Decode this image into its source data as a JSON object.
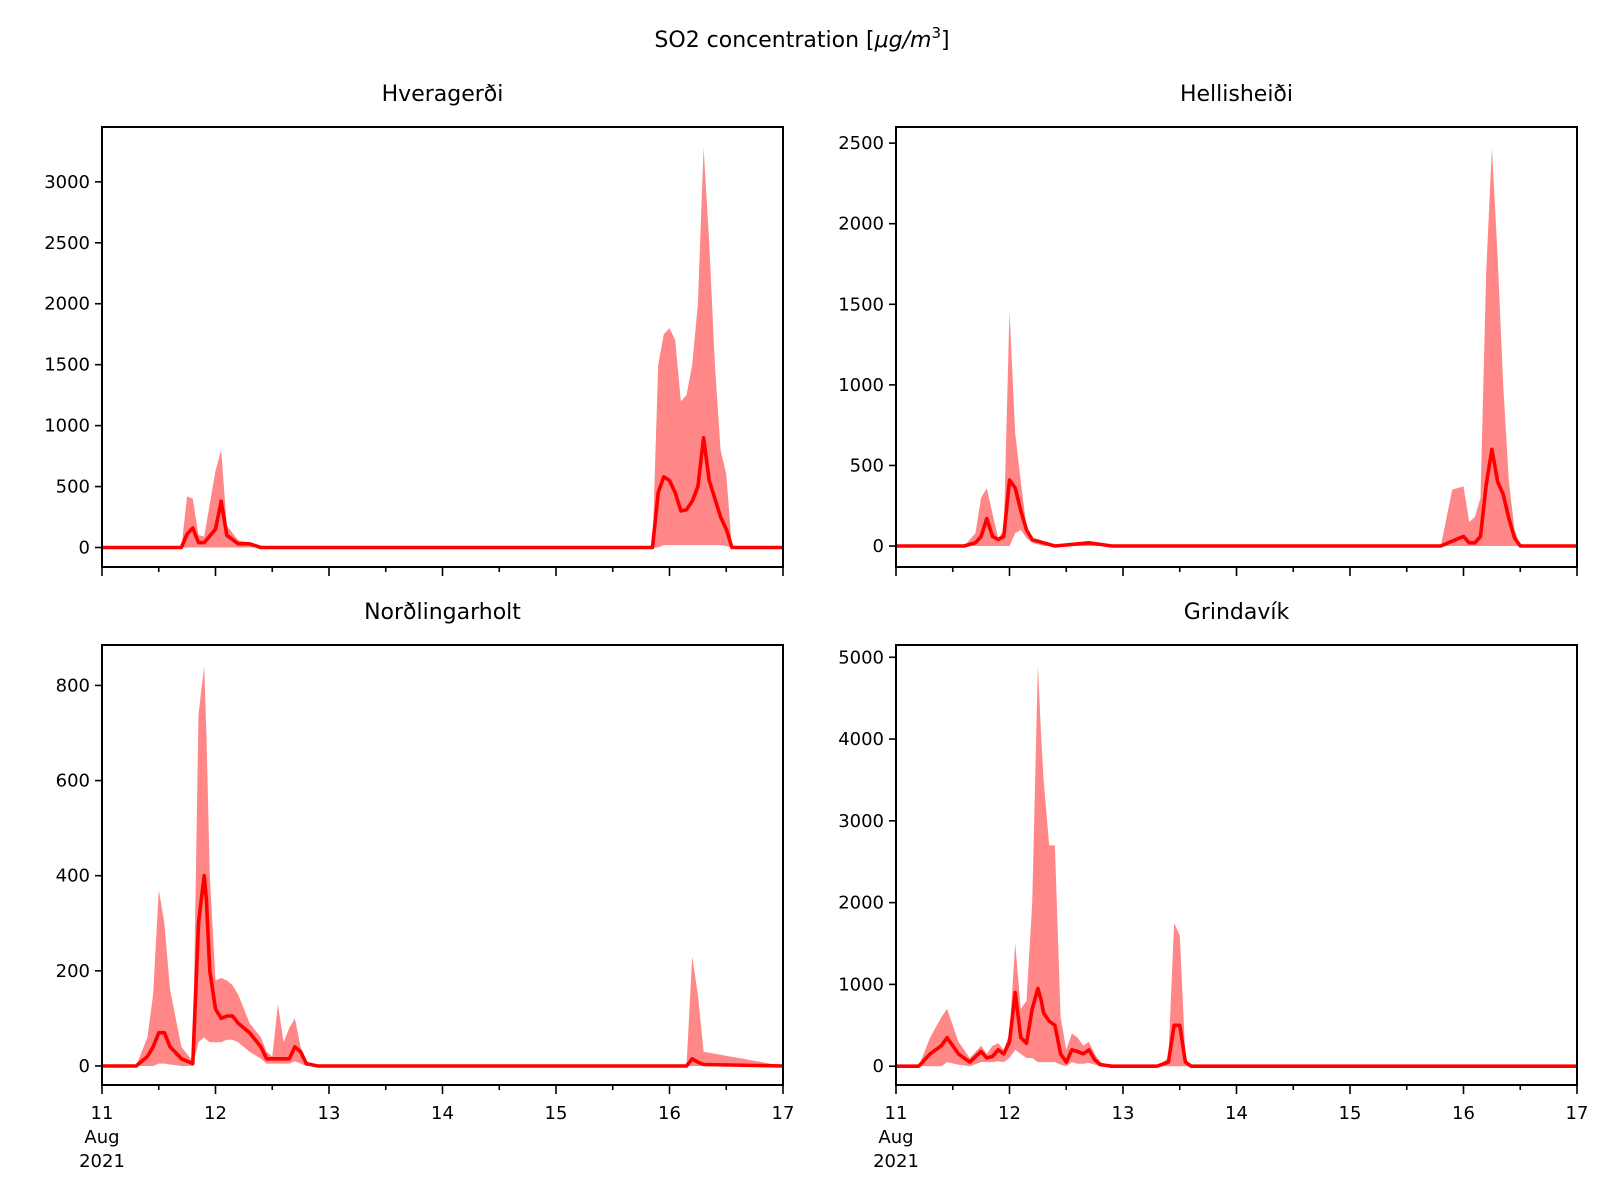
{
  "figure": {
    "suptitle_text": "SO2 concentration [",
    "suptitle_unit": "μg/m",
    "suptitle_exp": "3",
    "suptitle_close": "]"
  },
  "colors": {
    "series": "#ff0000",
    "band": "#ff8080"
  },
  "chart_data": [
    {
      "type": "area",
      "title": "Hveragerði",
      "x_range": [
        "2021-08-11",
        "2021-08-17"
      ],
      "x_ticks": [
        "11",
        "12",
        "13",
        "14",
        "15",
        "16",
        "17"
      ],
      "x_tick_labels_shown": false,
      "ylim": [
        -160,
        3450
      ],
      "y_ticks": [
        0,
        500,
        1000,
        1500,
        2000,
        2500,
        3000
      ],
      "x": [
        11.0,
        11.7,
        11.75,
        11.8,
        11.85,
        11.9,
        12.0,
        12.05,
        12.1,
        12.2,
        12.3,
        12.4,
        13.0,
        15.85,
        15.9,
        15.95,
        16.0,
        16.05,
        16.1,
        16.15,
        16.2,
        16.25,
        16.3,
        16.35,
        16.4,
        16.45,
        16.5,
        16.55,
        17.0
      ],
      "series": [
        {
          "name": "upper",
          "values": [
            0,
            0,
            420,
            400,
            100,
            90,
            630,
            800,
            180,
            60,
            40,
            0,
            0,
            0,
            1500,
            1750,
            1800,
            1700,
            1200,
            1250,
            1500,
            2000,
            3280,
            2500,
            1500,
            800,
            600,
            0,
            0
          ]
        },
        {
          "name": "mean",
          "values": [
            0,
            0,
            110,
            160,
            40,
            40,
            150,
            380,
            100,
            30,
            30,
            0,
            0,
            0,
            450,
            580,
            550,
            450,
            300,
            310,
            380,
            500,
            900,
            550,
            400,
            250,
            150,
            0,
            0
          ]
        },
        {
          "name": "lower",
          "values": [
            0,
            0,
            0,
            0,
            0,
            0,
            0,
            0,
            0,
            0,
            0,
            0,
            0,
            0,
            0,
            20,
            20,
            20,
            20,
            20,
            20,
            20,
            20,
            20,
            20,
            20,
            10,
            0,
            0
          ]
        }
      ]
    },
    {
      "type": "area",
      "title": "Hellisheiði",
      "x_range": [
        "2021-08-11",
        "2021-08-17"
      ],
      "x_ticks": [
        "11",
        "12",
        "13",
        "14",
        "15",
        "16",
        "17"
      ],
      "x_tick_labels_shown": false,
      "ylim": [
        -130,
        2600
      ],
      "y_ticks": [
        0,
        500,
        1000,
        1500,
        2000,
        2500
      ],
      "x": [
        11.0,
        11.6,
        11.7,
        11.75,
        11.8,
        11.85,
        11.9,
        11.95,
        12.0,
        12.05,
        12.1,
        12.15,
        12.2,
        12.3,
        12.4,
        12.7,
        12.8,
        12.9,
        15.8,
        15.9,
        16.0,
        16.05,
        16.1,
        16.15,
        16.2,
        16.25,
        16.3,
        16.35,
        16.4,
        16.45,
        16.5,
        17.0
      ],
      "series": [
        {
          "name": "upper",
          "values": [
            0,
            0,
            80,
            300,
            360,
            200,
            50,
            100,
            1460,
            700,
            400,
            120,
            50,
            30,
            0,
            30,
            20,
            0,
            0,
            350,
            370,
            150,
            180,
            300,
            1700,
            2470,
            1800,
            1000,
            400,
            100,
            0,
            0
          ]
        },
        {
          "name": "mean",
          "values": [
            0,
            0,
            20,
            60,
            170,
            60,
            40,
            60,
            410,
            360,
            220,
            100,
            40,
            20,
            0,
            20,
            10,
            0,
            0,
            30,
            60,
            20,
            20,
            60,
            380,
            600,
            400,
            320,
            170,
            50,
            0,
            0
          ]
        },
        {
          "name": "lower",
          "values": [
            0,
            0,
            0,
            0,
            0,
            0,
            0,
            0,
            0,
            80,
            100,
            50,
            20,
            0,
            0,
            0,
            0,
            0,
            0,
            0,
            0,
            0,
            0,
            0,
            0,
            0,
            0,
            0,
            0,
            0,
            0,
            0
          ]
        }
      ]
    },
    {
      "type": "area",
      "title": "Norðlingarholt",
      "x_range": [
        "2021-08-11",
        "2021-08-17"
      ],
      "x_ticks": [
        "11",
        "12",
        "13",
        "14",
        "15",
        "16",
        "17"
      ],
      "x_tick_labels": [
        "11\nAug\n2021",
        "12",
        "13",
        "14",
        "15",
        "16",
        "17"
      ],
      "x_tick_labels_shown": true,
      "ylim": [
        -40,
        885
      ],
      "y_ticks": [
        0,
        200,
        400,
        600,
        800
      ],
      "x": [
        11.0,
        11.3,
        11.4,
        11.45,
        11.5,
        11.55,
        11.6,
        11.7,
        11.8,
        11.85,
        11.9,
        11.92,
        11.95,
        12.0,
        12.05,
        12.1,
        12.15,
        12.2,
        12.3,
        12.4,
        12.45,
        12.5,
        12.55,
        12.6,
        12.65,
        12.7,
        12.75,
        12.8,
        12.9,
        16.15,
        16.2,
        16.25,
        16.3,
        17.0
      ],
      "series": [
        {
          "name": "upper",
          "values": [
            0,
            0,
            60,
            150,
            370,
            300,
            160,
            40,
            10,
            740,
            840,
            700,
            400,
            180,
            185,
            180,
            170,
            150,
            90,
            60,
            30,
            20,
            130,
            50,
            80,
            100,
            40,
            10,
            0,
            0,
            230,
            150,
            30,
            0
          ]
        },
        {
          "name": "mean",
          "values": [
            0,
            0,
            20,
            40,
            70,
            70,
            40,
            15,
            5,
            300,
            400,
            350,
            200,
            120,
            100,
            105,
            105,
            90,
            70,
            40,
            15,
            15,
            15,
            15,
            15,
            40,
            30,
            5,
            0,
            0,
            15,
            8,
            3,
            0
          ]
        },
        {
          "name": "lower",
          "values": [
            0,
            0,
            0,
            0,
            5,
            5,
            3,
            0,
            0,
            50,
            60,
            55,
            50,
            50,
            50,
            55,
            55,
            50,
            30,
            15,
            5,
            5,
            5,
            5,
            5,
            10,
            5,
            0,
            0,
            0,
            0,
            0,
            0,
            0
          ]
        }
      ]
    },
    {
      "type": "area",
      "title": "Grindavík",
      "x_range": [
        "2021-08-11",
        "2021-08-17"
      ],
      "x_ticks": [
        "11",
        "12",
        "13",
        "14",
        "15",
        "16",
        "17"
      ],
      "x_tick_labels": [
        "11\nAug\n2021",
        "12",
        "13",
        "14",
        "15",
        "16",
        "17"
      ],
      "x_tick_labels_shown": true,
      "ylim": [
        -230,
        5150
      ],
      "y_ticks": [
        0,
        1000,
        2000,
        3000,
        4000,
        5000
      ],
      "x": [
        11.0,
        11.2,
        11.3,
        11.4,
        11.45,
        11.55,
        11.65,
        11.75,
        11.8,
        11.85,
        11.9,
        11.95,
        12.0,
        12.05,
        12.1,
        12.15,
        12.2,
        12.25,
        12.28,
        12.3,
        12.35,
        12.4,
        12.45,
        12.5,
        12.55,
        12.6,
        12.65,
        12.7,
        12.75,
        12.8,
        12.9,
        13.3,
        13.4,
        13.45,
        13.5,
        13.55,
        13.6,
        13.7,
        17.0
      ],
      "series": [
        {
          "name": "upper",
          "values": [
            0,
            0,
            350,
            600,
            700,
            300,
            100,
            250,
            150,
            250,
            280,
            200,
            400,
            1500,
            700,
            800,
            2000,
            4900,
            4000,
            3500,
            2700,
            2700,
            600,
            200,
            400,
            350,
            250,
            300,
            150,
            50,
            0,
            0,
            100,
            1750,
            1600,
            100,
            0,
            0,
            0
          ]
        },
        {
          "name": "mean",
          "values": [
            0,
            0,
            150,
            250,
            350,
            150,
            50,
            180,
            100,
            120,
            200,
            150,
            300,
            900,
            350,
            280,
            700,
            950,
            800,
            650,
            550,
            500,
            150,
            50,
            200,
            180,
            150,
            200,
            80,
            20,
            0,
            0,
            50,
            500,
            500,
            50,
            0,
            0,
            0
          ]
        },
        {
          "name": "lower",
          "values": [
            0,
            0,
            0,
            0,
            50,
            20,
            0,
            50,
            50,
            50,
            60,
            50,
            100,
            200,
            150,
            100,
            100,
            50,
            50,
            50,
            50,
            50,
            20,
            0,
            50,
            30,
            30,
            40,
            20,
            0,
            0,
            0,
            0,
            0,
            0,
            0,
            0,
            0,
            0
          ]
        }
      ]
    }
  ]
}
